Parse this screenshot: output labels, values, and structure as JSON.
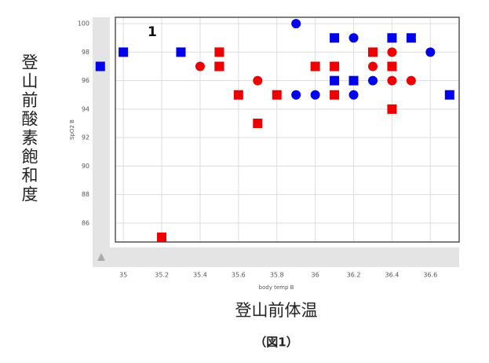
{
  "chart_data": {
    "type": "scatter",
    "title": "登山前体温",
    "caption": "（図1）",
    "y_title": "登山前酸素飽和度",
    "xlabel": "body temp B",
    "ylabel": "SpO2 B",
    "annotation": "1",
    "xlim": [
      34.84,
      36.75
    ],
    "ylim": [
      82.9,
      100.45
    ],
    "xticks": [
      35,
      35.2,
      35.4,
      35.6,
      35.8,
      36,
      36.2,
      36.4,
      36.6
    ],
    "yticks": [
      86,
      88,
      90,
      92,
      94,
      96,
      98,
      100
    ],
    "grid": true,
    "series": [
      {
        "color": "#0000ee",
        "marker": "square",
        "x": [
          34.88,
          35.0,
          35.3,
          35.5,
          36.1,
          36.1,
          36.2,
          36.4,
          36.5,
          36.7
        ],
        "values": [
          97,
          98,
          98,
          97,
          99,
          96,
          96,
          99,
          99,
          95
        ]
      },
      {
        "color": "#0000ee",
        "marker": "circle",
        "x": [
          35.9,
          35.9,
          36.0,
          36.2,
          36.2,
          36.3,
          36.6
        ],
        "values": [
          100,
          95,
          95,
          99,
          95,
          96,
          98
        ]
      },
      {
        "color": "#ee0000",
        "marker": "square",
        "x": [
          35.2,
          35.5,
          35.5,
          35.6,
          35.7,
          35.8,
          36.0,
          36.1,
          36.1,
          36.3,
          36.4,
          36.4
        ],
        "values": [
          85,
          98,
          97,
          95,
          93,
          95,
          97,
          97,
          95,
          98,
          97,
          94
        ]
      },
      {
        "color": "#ee0000",
        "marker": "circle",
        "x": [
          35.4,
          35.7,
          36.3,
          36.4,
          36.4,
          36.5
        ],
        "values": [
          97,
          96,
          97,
          98,
          96,
          96
        ]
      }
    ]
  }
}
